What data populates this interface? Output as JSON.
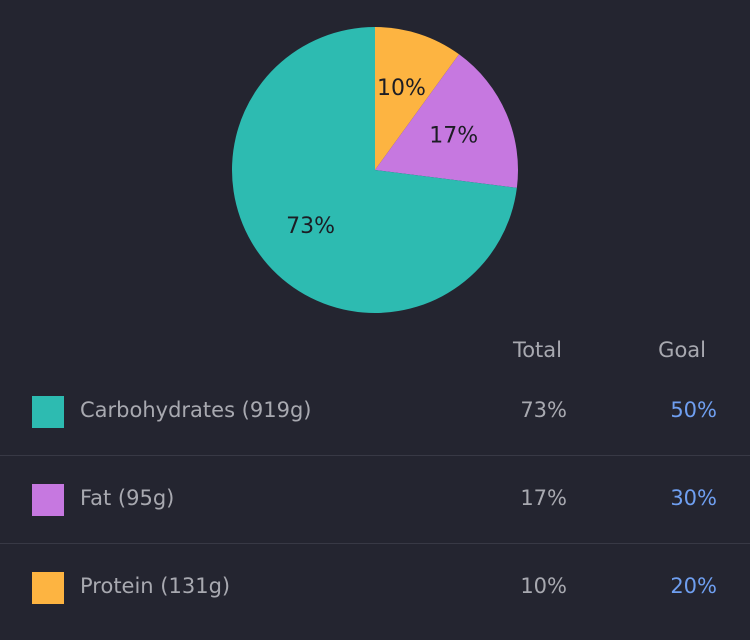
{
  "chart_data": {
    "type": "pie",
    "title": "",
    "slices": [
      {
        "name": "Protein",
        "value": 10,
        "label": "10%",
        "color": "#fdb441"
      },
      {
        "name": "Fat",
        "value": 17,
        "label": "17%",
        "color": "#c678e0"
      },
      {
        "name": "Carbohydrates",
        "value": 73,
        "label": "73%",
        "color": "#2dbbb1"
      }
    ]
  },
  "table": {
    "headers": {
      "total": "Total",
      "goal": "Goal"
    },
    "rows": [
      {
        "name": "Carbohydrates (919g)",
        "total": "73%",
        "goal": "50%",
        "color": "#2dbbb1"
      },
      {
        "name": "Fat (95g)",
        "total": "17%",
        "goal": "30%",
        "color": "#c678e0"
      },
      {
        "name": "Protein (131g)",
        "total": "10%",
        "goal": "20%",
        "color": "#fdb441"
      }
    ]
  }
}
